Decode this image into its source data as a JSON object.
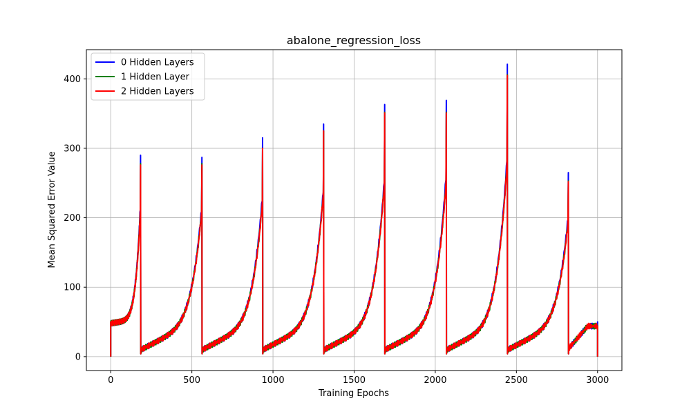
{
  "chart_data": {
    "type": "line",
    "title": "abalone_regression_loss",
    "xlabel": "Training Epochs",
    "ylabel": "Mean Squared Error Value",
    "xlim": [
      -150,
      3150
    ],
    "ylim": [
      -20,
      442
    ],
    "xticks": [
      0,
      500,
      1000,
      1500,
      2000,
      2500,
      3000
    ],
    "yticks": [
      0,
      100,
      200,
      300,
      400
    ],
    "grid": true,
    "legend_position": "top-left",
    "cycle_start": 0,
    "cycle_length": 374,
    "points_per_cycle": 90,
    "series": [
      {
        "name": "0 Hidden Layers",
        "color": "#0000ff",
        "peaks": [
          290,
          287,
          315,
          335,
          363,
          369,
          421,
          265
        ],
        "end_value": 50
      },
      {
        "name": "1 Hidden Layer",
        "color": "#008000",
        "peaks": [
          278,
          278,
          300,
          325,
          352,
          352,
          406,
          253
        ],
        "end_value": 45
      },
      {
        "name": "2 Hidden Layers",
        "color": "#ff0000",
        "peaks": [
          276,
          276,
          300,
          325,
          351,
          351,
          405,
          252
        ],
        "end_value": 44
      }
    ]
  }
}
